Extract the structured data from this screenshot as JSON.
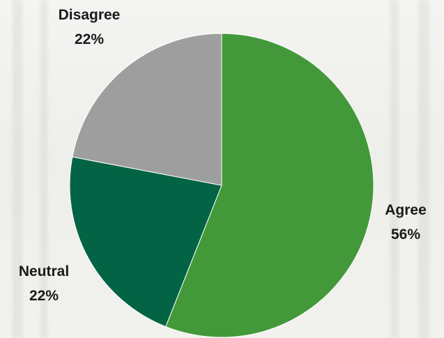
{
  "chart_data": {
    "type": "pie",
    "start": "12 o'clock",
    "direction": "clockwise",
    "slices": [
      {
        "label": "Agree",
        "value": 56,
        "value_label": "56%",
        "color": "#43993a"
      },
      {
        "label": "Neutral",
        "value": 22,
        "value_label": "22%",
        "color": "#036445"
      },
      {
        "label": "Disagree",
        "value": 22,
        "value_label": "22%",
        "color": "#9e9e9e"
      }
    ]
  }
}
